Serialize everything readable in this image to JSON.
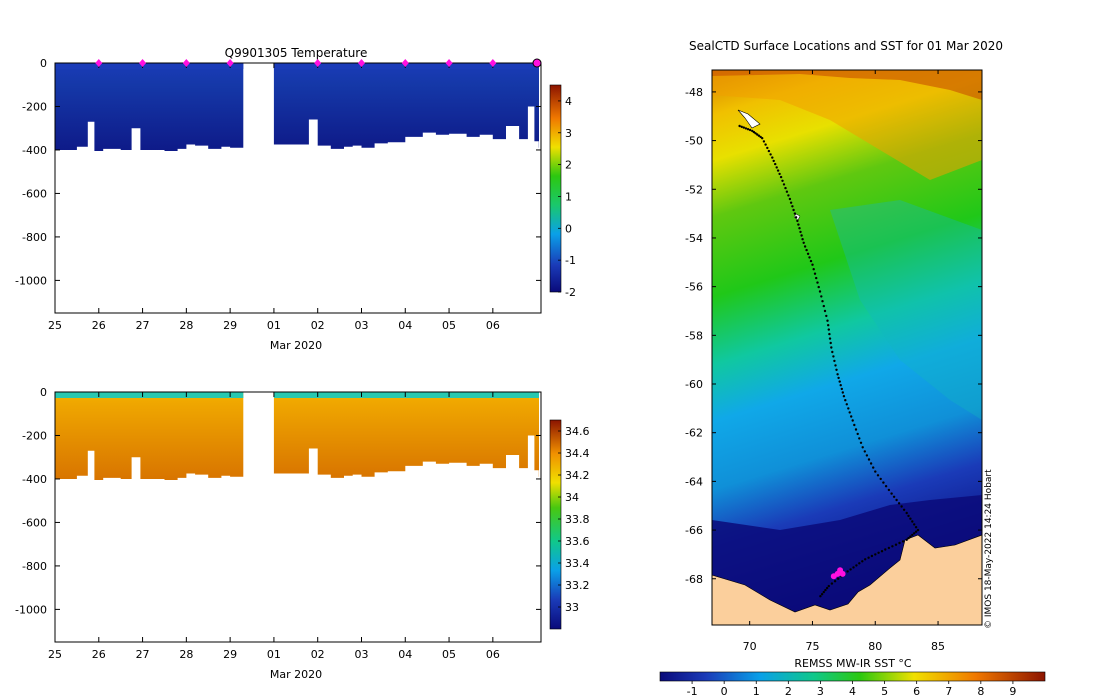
{
  "chart_data": [
    {
      "type": "heatmap",
      "title": "Q9901305  Temperature",
      "xlabel": "Mar 2020",
      "ylabel": "",
      "x_ticks": [
        "25",
        "26",
        "27",
        "28",
        "29",
        "01",
        "02",
        "03",
        "04",
        "05",
        "06"
      ],
      "y_ticks": [
        0,
        -200,
        -400,
        -600,
        -800,
        -1000
      ],
      "ylim": [
        -1150,
        0
      ],
      "colorbar_ticks": [
        4,
        3,
        2,
        1,
        0,
        -1,
        -2
      ],
      "colorbar_range": [
        -2,
        4.5
      ],
      "profile_marker_days": [
        26,
        27,
        28,
        29,
        31,
        32,
        33,
        34,
        35,
        36
      ],
      "data_gap_days": [
        29.3,
        30.0
      ],
      "profile_bottom_depths": [
        [
          25.0,
          -400
        ],
        [
          25.5,
          -385
        ],
        [
          25.75,
          -270
        ],
        [
          25.9,
          -405
        ],
        [
          26.1,
          -395
        ],
        [
          26.5,
          -400
        ],
        [
          26.75,
          -300
        ],
        [
          26.95,
          -400
        ],
        [
          27.5,
          -405
        ],
        [
          27.8,
          -395
        ],
        [
          28.0,
          -375
        ],
        [
          28.2,
          -380
        ],
        [
          28.5,
          -395
        ],
        [
          28.8,
          -385
        ],
        [
          29.0,
          -390
        ],
        [
          29.3,
          -385
        ],
        [
          30.0,
          -375
        ],
        [
          30.75,
          -375
        ],
        [
          30.8,
          -260
        ],
        [
          31.0,
          -380
        ],
        [
          31.3,
          -395
        ],
        [
          31.6,
          -385
        ],
        [
          31.8,
          -380
        ],
        [
          32.0,
          -390
        ],
        [
          32.3,
          -370
        ],
        [
          32.6,
          -365
        ],
        [
          33.0,
          -340
        ],
        [
          33.4,
          -320
        ],
        [
          33.7,
          -330
        ],
        [
          34.0,
          -325
        ],
        [
          34.4,
          -340
        ],
        [
          34.7,
          -330
        ],
        [
          35.0,
          -350
        ],
        [
          35.3,
          -290
        ],
        [
          35.6,
          -350
        ],
        [
          35.8,
          -200
        ],
        [
          35.95,
          -360
        ],
        [
          36.05,
          -390
        ]
      ]
    },
    {
      "type": "heatmap",
      "title": "",
      "xlabel": "Mar 2020",
      "ylabel": "",
      "x_ticks": [
        "25",
        "26",
        "27",
        "28",
        "29",
        "01",
        "02",
        "03",
        "04",
        "05",
        "06"
      ],
      "y_ticks": [
        0,
        -200,
        -400,
        -600,
        -800,
        -1000
      ],
      "ylim": [
        -1150,
        0
      ],
      "colorbar_ticks": [
        34.6,
        34.4,
        34.2,
        34,
        33.8,
        33.6,
        33.4,
        33.2,
        33
      ],
      "colorbar_range": [
        32.8,
        34.7
      ],
      "data_gap_days": [
        29.3,
        30.0
      ]
    },
    {
      "type": "map",
      "title": "SealCTD Surface Locations and SST for 01 Mar 2020",
      "colorbar_label": "REMSS MW-IR SST °C",
      "colorbar_ticks": [
        -1,
        0,
        1,
        2,
        3,
        4,
        5,
        6,
        7,
        8,
        9
      ],
      "colorbar_range": [
        -2,
        10
      ],
      "lon_ticks": [
        70,
        75,
        80,
        85
      ],
      "lat_ticks": [
        -48,
        -50,
        -52,
        -54,
        -56,
        -58,
        -60,
        -62,
        -64,
        -66,
        -68
      ],
      "lon_range": [
        67,
        88.5
      ],
      "lat_range": [
        -69.9,
        -47.1
      ],
      "side_text": "© IMOS 18-May-2022 14:24 Hobart",
      "track": [
        [
          69.2,
          -49.4
        ],
        [
          70.2,
          -49.6
        ],
        [
          71.0,
          -49.9
        ],
        [
          71.8,
          -50.7
        ],
        [
          72.5,
          -51.5
        ],
        [
          73.2,
          -52.4
        ],
        [
          73.8,
          -53.3
        ],
        [
          74.3,
          -54.2
        ],
        [
          75.0,
          -55.1
        ],
        [
          75.6,
          -56.2
        ],
        [
          76.2,
          -57.4
        ],
        [
          76.5,
          -58.5
        ],
        [
          77.0,
          -59.6
        ],
        [
          77.5,
          -60.5
        ],
        [
          78.2,
          -61.5
        ],
        [
          79.0,
          -62.6
        ],
        [
          80.0,
          -63.6
        ],
        [
          81.3,
          -64.5
        ],
        [
          82.5,
          -65.3
        ],
        [
          83.4,
          -66.0
        ],
        [
          82.5,
          -66.4
        ],
        [
          80.8,
          -66.8
        ],
        [
          79.2,
          -67.2
        ],
        [
          77.8,
          -67.7
        ],
        [
          76.3,
          -68.3
        ],
        [
          75.5,
          -68.8
        ]
      ],
      "latest_positions": [
        [
          76.7,
          -67.9
        ],
        [
          77.0,
          -67.8
        ],
        [
          77.4,
          -67.8
        ],
        [
          77.2,
          -67.65
        ]
      ]
    }
  ]
}
